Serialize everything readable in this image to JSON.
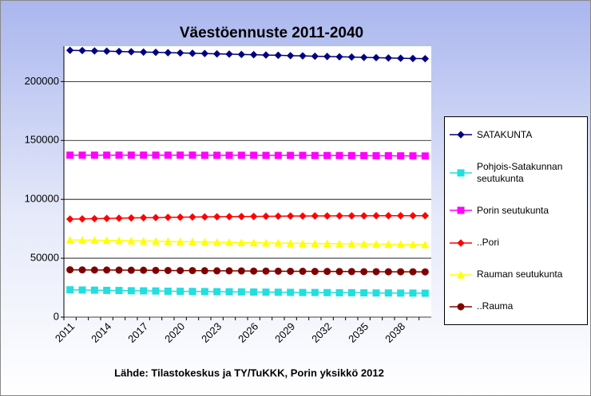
{
  "chart_data": {
    "type": "line",
    "title": "Väestöennuste 2011-2040",
    "source": "Lähde: Tilastokeskus ja TY/TuKKK, Porin yksikkö 2012",
    "categories": [
      "2011",
      null,
      null,
      "2014",
      null,
      null,
      "2017",
      null,
      null,
      "2020",
      null,
      null,
      "2023",
      null,
      null,
      "2026",
      null,
      null,
      "2029",
      null,
      null,
      "2032",
      null,
      null,
      "2035",
      null,
      null,
      "2038",
      null,
      null
    ],
    "ylim": [
      0,
      230000
    ],
    "yticks": [
      0,
      50000,
      100000,
      150000,
      200000
    ],
    "grid": true,
    "legend": "right",
    "series": [
      {
        "name": "SATAKUNTA",
        "color": "#000080",
        "marker": "diamond",
        "values": [
          226500,
          226300,
          226000,
          225800,
          225500,
          225300,
          225000,
          224800,
          224500,
          224300,
          224000,
          223800,
          223500,
          223300,
          223000,
          222800,
          222500,
          222300,
          222000,
          221800,
          221500,
          221300,
          221000,
          220800,
          220500,
          220300,
          220000,
          219800,
          219600,
          219400
        ]
      },
      {
        "name": "Pohjois-Satakunnan seutukunta",
        "color": "#22dede",
        "marker": "square",
        "values": [
          23200,
          23000,
          22900,
          22700,
          22600,
          22400,
          22300,
          22200,
          22000,
          21900,
          21800,
          21700,
          21600,
          21500,
          21400,
          21300,
          21200,
          21100,
          21000,
          20900,
          20900,
          20800,
          20700,
          20700,
          20600,
          20500,
          20500,
          20400,
          20400,
          20300
        ]
      },
      {
        "name": "Porin seutukunta",
        "color": "#ff00ff",
        "marker": "square",
        "values": [
          137500,
          137500,
          137500,
          137500,
          137500,
          137500,
          137500,
          137500,
          137500,
          137500,
          137500,
          137400,
          137400,
          137400,
          137400,
          137400,
          137300,
          137300,
          137300,
          137300,
          137200,
          137200,
          137200,
          137100,
          137100,
          137000,
          137000,
          136900,
          136900,
          136800
        ]
      },
      {
        "name": "..Pori",
        "color": "#ff0000",
        "marker": "diamond",
        "values": [
          83200,
          83400,
          83600,
          83800,
          84000,
          84200,
          84400,
          84500,
          84700,
          84800,
          85000,
          85100,
          85200,
          85300,
          85400,
          85500,
          85600,
          85700,
          85800,
          85800,
          85900,
          85900,
          86000,
          86000,
          86000,
          86100,
          86100,
          86100,
          86100,
          86100
        ]
      },
      {
        "name": "Rauman seutukunta",
        "color": "#ffff00",
        "marker": "triangle",
        "values": [
          65500,
          65400,
          65300,
          65100,
          65000,
          64800,
          64600,
          64500,
          64300,
          64100,
          64000,
          63800,
          63600,
          63500,
          63300,
          63200,
          63000,
          62900,
          62700,
          62600,
          62500,
          62400,
          62300,
          62200,
          62100,
          62000,
          61900,
          61800,
          61700,
          61600
        ]
      },
      {
        "name": "..Rauma",
        "color": "#800000",
        "marker": "circle",
        "values": [
          40200,
          40100,
          40000,
          40000,
          39900,
          39800,
          39800,
          39700,
          39600,
          39500,
          39500,
          39400,
          39300,
          39300,
          39200,
          39100,
          39100,
          39000,
          38900,
          38900,
          38800,
          38800,
          38700,
          38700,
          38600,
          38600,
          38500,
          38500,
          38500,
          38400
        ]
      }
    ]
  }
}
